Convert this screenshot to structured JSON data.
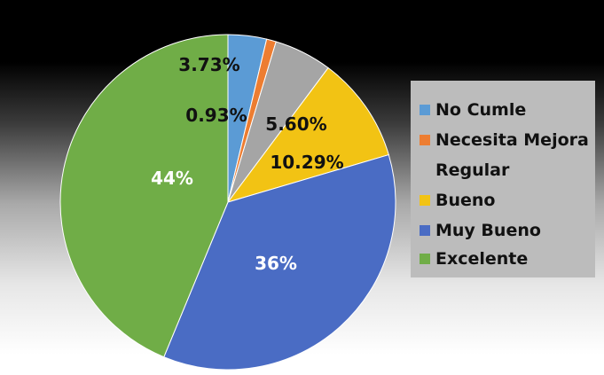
{
  "chart_data": {
    "type": "pie",
    "categories": [
      "No Cumle",
      "Necesita Mejora",
      "Regular",
      "Bueno",
      "Muy Bueno",
      "Excelente"
    ],
    "values": [
      3.73,
      0.93,
      5.6,
      10.29,
      36,
      44
    ],
    "labels": [
      "3.73%",
      "0.93%",
      "5.60%",
      "10.29%",
      "36%",
      "44%"
    ],
    "colors": [
      "#5b9bd5",
      "#ed7d31",
      "#a5a5a5",
      "#f2c314",
      "#4a6cc4",
      "#70ad47"
    ],
    "label_colors": [
      "#111111",
      "#111111",
      "#111111",
      "#111111",
      "#ffffff",
      "#ffffff"
    ],
    "legend": {
      "placement": "right",
      "items": [
        {
          "label": "No Cumle",
          "color": "#5b9bd5"
        },
        {
          "label": "Necesita Mejora",
          "color": "#ed7d31"
        },
        {
          "label": "Regular",
          "color": ""
        },
        {
          "label": "Bueno",
          "color": "#f2c314"
        },
        {
          "label": "Muy Bueno",
          "color": "#4a6cc4"
        },
        {
          "label": "Excelente",
          "color": "#70ad47"
        }
      ]
    },
    "title": ""
  }
}
